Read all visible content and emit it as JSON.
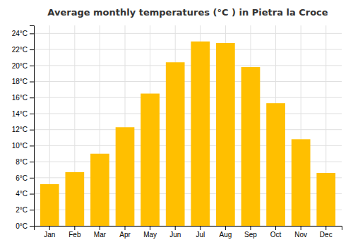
{
  "chart_data": {
    "type": "bar",
    "title": "Average monthly temperatures (°C ) in Pietra la Croce",
    "categories": [
      "Jan",
      "Feb",
      "Mar",
      "Apr",
      "May",
      "Jun",
      "Jul",
      "Aug",
      "Sep",
      "Oct",
      "Nov",
      "Dec"
    ],
    "values": [
      5.2,
      6.7,
      9.0,
      12.3,
      16.5,
      20.4,
      23.0,
      22.8,
      19.8,
      15.3,
      10.8,
      6.6
    ],
    "color": "#FFBF00",
    "ylim": [
      0,
      25
    ],
    "yticks": [
      {
        "value": 0,
        "label": "0°C"
      },
      {
        "value": 2,
        "label": "2°C"
      },
      {
        "value": 4,
        "label": "4°C"
      },
      {
        "value": 6,
        "label": "6°C"
      },
      {
        "value": 8,
        "label": "8°C"
      },
      {
        "value": 10,
        "label": "10°C"
      },
      {
        "value": 12,
        "label": "12°C"
      },
      {
        "value": 14,
        "label": "14°C"
      },
      {
        "value": 16,
        "label": "16°C"
      },
      {
        "value": 18,
        "label": "18°C"
      },
      {
        "value": 20,
        "label": "20°C"
      },
      {
        "value": 22,
        "label": "22°C"
      },
      {
        "value": 24,
        "label": "24°C"
      }
    ],
    "grid": true
  }
}
